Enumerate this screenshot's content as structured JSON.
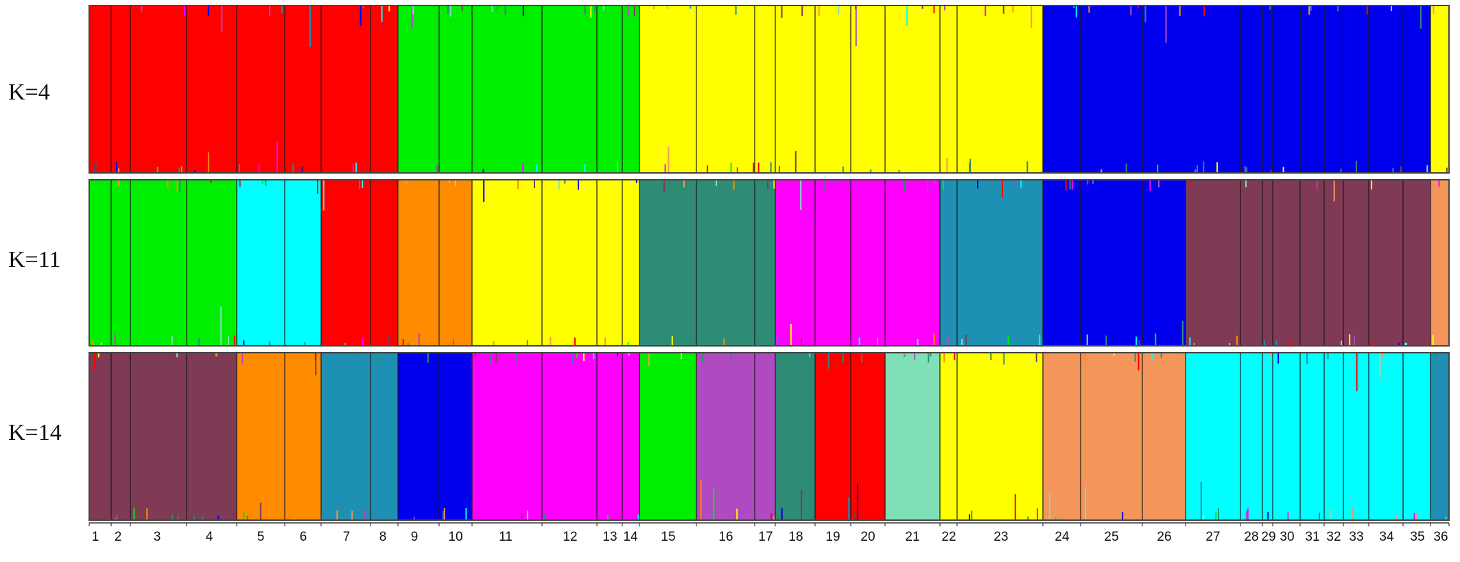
{
  "chart_data": {
    "type": "stacked-bar",
    "description_none": "",
    "palette": {
      "red": "#ff0000",
      "green": "#00ee00",
      "yellow": "#ffff00",
      "blue": "#0000ee",
      "cyan": "#00ffff",
      "orange": "#ff8c00",
      "teal": "#2e8b74",
      "magenta": "#ff00ff",
      "steelblue": "#1e90b4",
      "maroon": "#7f3a55",
      "salmon": "#f4955a",
      "purple": "#b04ac0",
      "mint": "#7fe0b8",
      "darkteal": "#2e8b74"
    },
    "populations": [
      "1",
      "2",
      "3",
      "4",
      "5",
      "6",
      "7",
      "8",
      "9",
      "10",
      "11",
      "12",
      "13",
      "14",
      "15",
      "16",
      "17",
      "18",
      "19",
      "20",
      "21",
      "22",
      "23",
      "24",
      "25",
      "26",
      "27",
      "28",
      "29",
      "30",
      "31",
      "32",
      "33",
      "34",
      "35",
      "36"
    ],
    "panels": [
      {
        "label": "K=4",
        "K": 4,
        "dominant_cluster": [
          "red",
          "red",
          "red",
          "red",
          "red",
          "red",
          "red",
          "red",
          "green",
          "green",
          "green",
          "green",
          "green",
          "green",
          "yellow",
          "yellow",
          "yellow",
          "yellow",
          "yellow",
          "yellow",
          "yellow",
          "yellow",
          "yellow",
          "blue",
          "blue",
          "blue",
          "blue",
          "blue",
          "blue",
          "blue",
          "blue",
          "blue",
          "blue",
          "blue",
          "blue",
          "yellow"
        ]
      },
      {
        "label": "K=11",
        "K": 11,
        "dominant_cluster": [
          "green",
          "green",
          "green",
          "green",
          "cyan",
          "cyan",
          "red",
          "red",
          "orange",
          "orange",
          "yellow",
          "yellow",
          "yellow",
          "yellow",
          "teal",
          "teal",
          "teal",
          "magenta",
          "magenta",
          "magenta",
          "magenta",
          "steelblue",
          "steelblue",
          "blue",
          "blue",
          "blue",
          "maroon",
          "maroon",
          "maroon",
          "maroon",
          "maroon",
          "maroon",
          "maroon",
          "maroon",
          "maroon",
          "salmon"
        ]
      },
      {
        "label": "K=14",
        "K": 14,
        "dominant_cluster": [
          "maroon",
          "maroon",
          "maroon",
          "maroon",
          "orange",
          "orange",
          "steelblue",
          "steelblue",
          "blue",
          "blue",
          "magenta",
          "magenta",
          "magenta",
          "magenta",
          "green",
          "purple",
          "purple",
          "darkteal",
          "red",
          "red",
          "mint",
          "yellow",
          "yellow",
          "salmon",
          "salmon",
          "salmon",
          "cyan",
          "cyan",
          "cyan",
          "cyan",
          "cyan",
          "cyan",
          "cyan",
          "cyan",
          "cyan",
          "steelblue"
        ]
      }
    ]
  }
}
